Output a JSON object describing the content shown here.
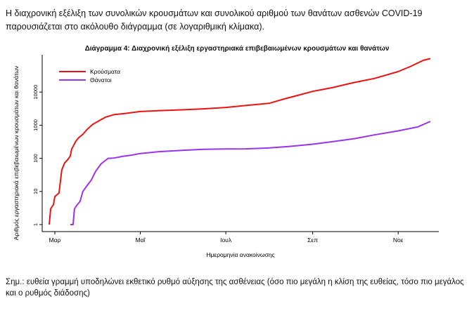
{
  "intro_text": "Η διαχρονική εξέλιξη των συνολικών κρουσμάτων και συνολικού αριθμού των θανάτων ασθενών COVID-19 παρουσιάζεται στο ακόλουθο διάγραμμα (σε λογαριθμική κλίμακα).",
  "note_text": "Σημ.: ευθεία γραμμή υποδηλώνει εκθετικό ρυθμό αύξησης της ασθένειας (όσο πιο μεγάλη η κλίση της ευθείας, τόσο πιο μεγάλος και ο ρυθμός διάδοσης)",
  "chart_data": {
    "type": "line",
    "title": "Διάγραμμα 4: Διαχρονική εξέλιξη εργαστηριακά επιβεβαιωμένων κρουσμάτων και θανάτων",
    "xlabel": "Ημερομηνία ανακοίνωσης",
    "ylabel": "Αριθμός εργαστηριακά επιβεβαιωμένων κρουσμάτων και θανάτων",
    "y_scale": "log",
    "ylim": [
      1,
      100000
    ],
    "yticks": [
      1,
      10,
      100,
      1000,
      10000
    ],
    "ytick_labels": [
      "1",
      "10",
      "100",
      "1000",
      "10000"
    ],
    "xlim": [
      "2020-02-26",
      "2020-11-30"
    ],
    "x_ticks": [
      "2020-03-01",
      "2020-05-01",
      "2020-07-01",
      "2020-09-01",
      "2020-11-01"
    ],
    "x_tick_labels": [
      "Μαρ",
      "Μαΐ",
      "Ιουλ",
      "Σεπ",
      "Νοε"
    ],
    "legend_position": "top-left",
    "series": [
      {
        "name": "Κρούσματα",
        "color": "#ee1111",
        "points": [
          [
            "2020-02-26",
            1
          ],
          [
            "2020-02-27",
            3
          ],
          [
            "2020-02-29",
            4
          ],
          [
            "2020-03-01",
            7
          ],
          [
            "2020-03-04",
            9
          ],
          [
            "2020-03-06",
            45
          ],
          [
            "2020-03-08",
            73
          ],
          [
            "2020-03-10",
            89
          ],
          [
            "2020-03-12",
            117
          ],
          [
            "2020-03-13",
            190
          ],
          [
            "2020-03-14",
            228
          ],
          [
            "2020-03-16",
            331
          ],
          [
            "2020-03-18",
            418
          ],
          [
            "2020-03-21",
            530
          ],
          [
            "2020-03-24",
            743
          ],
          [
            "2020-03-28",
            1061
          ],
          [
            "2020-04-01",
            1314
          ],
          [
            "2020-04-06",
            1735
          ],
          [
            "2020-04-12",
            2081
          ],
          [
            "2020-04-20",
            2245
          ],
          [
            "2020-05-01",
            2591
          ],
          [
            "2020-05-15",
            2760
          ],
          [
            "2020-06-01",
            2918
          ],
          [
            "2020-06-15",
            3121
          ],
          [
            "2020-07-01",
            3432
          ],
          [
            "2020-07-15",
            3910
          ],
          [
            "2020-08-01",
            4587
          ],
          [
            "2020-08-10",
            5942
          ],
          [
            "2020-08-20",
            7684
          ],
          [
            "2020-09-01",
            10524
          ],
          [
            "2020-09-15",
            13588
          ],
          [
            "2020-10-01",
            19613
          ],
          [
            "2020-10-15",
            25802
          ],
          [
            "2020-11-01",
            41527
          ],
          [
            "2020-11-10",
            59800
          ],
          [
            "2020-11-19",
            91000
          ],
          [
            "2020-11-24",
            102500
          ]
        ]
      },
      {
        "name": "Θάνατοι",
        "color": "#9933ee",
        "points": [
          [
            "2020-03-12",
            1
          ],
          [
            "2020-03-14",
            1
          ],
          [
            "2020-03-15",
            3
          ],
          [
            "2020-03-17",
            4
          ],
          [
            "2020-03-19",
            5
          ],
          [
            "2020-03-21",
            10
          ],
          [
            "2020-03-24",
            15
          ],
          [
            "2020-03-27",
            22
          ],
          [
            "2020-03-30",
            40
          ],
          [
            "2020-04-03",
            68
          ],
          [
            "2020-04-08",
            100
          ],
          [
            "2020-04-12",
            102
          ],
          [
            "2020-04-15",
            107
          ],
          [
            "2020-04-18",
            114
          ],
          [
            "2020-04-25",
            125
          ],
          [
            "2020-05-01",
            140
          ],
          [
            "2020-05-15",
            160
          ],
          [
            "2020-06-01",
            175
          ],
          [
            "2020-06-15",
            187
          ],
          [
            "2020-07-01",
            192
          ],
          [
            "2020-07-15",
            193
          ],
          [
            "2020-08-01",
            206
          ],
          [
            "2020-08-15",
            228
          ],
          [
            "2020-09-01",
            266
          ],
          [
            "2020-09-15",
            318
          ],
          [
            "2020-10-01",
            393
          ],
          [
            "2020-10-15",
            509
          ],
          [
            "2020-11-01",
            673
          ],
          [
            "2020-11-15",
            889
          ],
          [
            "2020-11-24",
            1300
          ]
        ]
      }
    ]
  }
}
